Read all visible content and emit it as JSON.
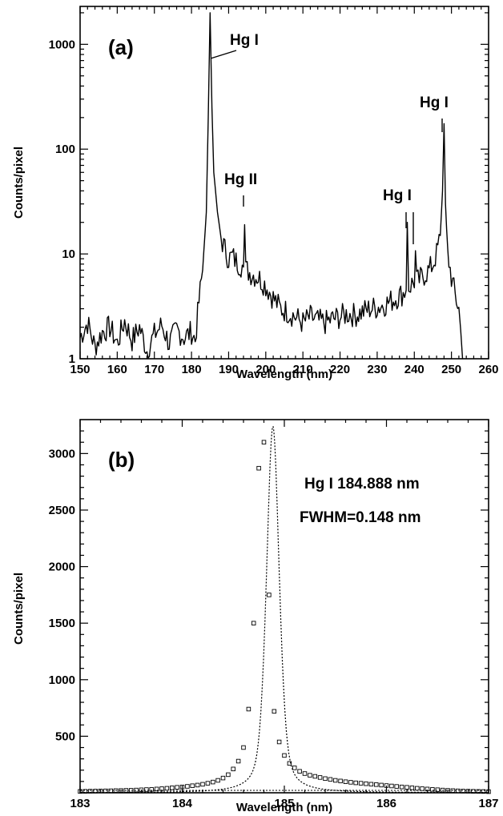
{
  "chart_data": [
    {
      "panel": "(a)",
      "type": "line",
      "xlabel": "Wavelength (nm)",
      "ylabel": "Counts/pixel",
      "xlim": [
        150,
        260
      ],
      "ylim": [
        1,
        2300
      ],
      "yscale": "log",
      "xticks": [
        "150",
        "160",
        "170",
        "180",
        "190",
        "200",
        "210",
        "220",
        "230",
        "240",
        "250",
        "260"
      ],
      "yticks": [
        "1",
        "10",
        "100",
        "1000"
      ],
      "series": [
        {
          "x": [
            150,
            152,
            154,
            156,
            158,
            160,
            162,
            164,
            166,
            168,
            170,
            172,
            174,
            176,
            178,
            180,
            181,
            182,
            183,
            184,
            184.5,
            185,
            185.5,
            186,
            187,
            188,
            189,
            190,
            191,
            192,
            193,
            194,
            194.3,
            194.6,
            195,
            196,
            198,
            200,
            202,
            204,
            206,
            208,
            210,
            212,
            214,
            216,
            218,
            220,
            222,
            224,
            226,
            228,
            230,
            232,
            234,
            236,
            237,
            237.8,
            238.1,
            238.5,
            239,
            240,
            240.3,
            240.6,
            241,
            242,
            243,
            244,
            245,
            246,
            247,
            247.6,
            248,
            248.4,
            249,
            250,
            251,
            252,
            252.5,
            253
          ],
          "y": [
            1.6,
            2.2,
            1.3,
            1.8,
            2.0,
            1.4,
            2.3,
            1.5,
            2.0,
            1.2,
            1.7,
            2.1,
            1.4,
            1.9,
            1.6,
            1.8,
            1.5,
            3.5,
            7,
            25,
            200,
            2000,
            250,
            60,
            25,
            14,
            11,
            9,
            9.5,
            8.5,
            8,
            7.5,
            19,
            7,
            7,
            6.5,
            6,
            5,
            3.8,
            3,
            2.8,
            2.5,
            2.2,
            2.5,
            2.3,
            2.2,
            2.4,
            2.5,
            2.7,
            2.6,
            2.8,
            3.0,
            3.1,
            3.3,
            3.6,
            4.0,
            4.2,
            4.5,
            20,
            4.8,
            5,
            5.5,
            10,
            5.5,
            5.5,
            6,
            6.5,
            7,
            8,
            10,
            15,
            40,
            175,
            30,
            10,
            6,
            4,
            3,
            1.8,
            1
          ]
        }
      ],
      "annotations": [
        "Hg I",
        "Hg II",
        "Hg I",
        "Hg I"
      ]
    },
    {
      "panel": "(b)",
      "type": "line",
      "xlabel": "Wavelength (nm)",
      "ylabel": "Counts/pixel",
      "xlim": [
        183,
        187
      ],
      "ylim": [
        0,
        3300
      ],
      "xticks": [
        "183",
        "184",
        "185",
        "186",
        "187"
      ],
      "yticks": [
        "500",
        "1000",
        "1500",
        "2000",
        "2500",
        "3000"
      ],
      "series": [
        {
          "x": [
            183.0,
            183.05,
            183.1,
            183.15,
            183.2,
            183.25,
            183.3,
            183.35,
            183.4,
            183.45,
            183.5,
            183.55,
            183.6,
            183.65,
            183.7,
            183.75,
            183.8,
            183.85,
            183.9,
            183.95,
            184.0,
            184.05,
            184.1,
            184.15,
            184.2,
            184.25,
            184.3,
            184.35,
            184.4,
            184.45,
            184.5,
            184.55,
            184.6,
            184.65,
            184.7,
            184.75,
            184.8,
            184.85,
            184.9,
            184.95,
            185.0,
            185.05,
            185.1,
            185.15,
            185.2,
            185.25,
            185.3,
            185.35,
            185.4,
            185.45,
            185.5,
            185.55,
            185.6,
            185.65,
            185.7,
            185.75,
            185.8,
            185.85,
            185.9,
            185.95,
            186.0,
            186.05,
            186.1,
            186.15,
            186.2,
            186.25,
            186.3,
            186.35,
            186.4,
            186.45,
            186.5,
            186.55,
            186.6,
            186.65,
            186.7,
            186.75,
            186.8,
            186.85,
            186.9,
            186.95,
            187.0
          ],
          "y": [
            12,
            13,
            14,
            15,
            16,
            17,
            18,
            19,
            20,
            21,
            22,
            24,
            26,
            28,
            30,
            33,
            36,
            40,
            44,
            48,
            52,
            57,
            62,
            68,
            75,
            84,
            95,
            110,
            130,
            160,
            210,
            280,
            400,
            740,
            1500,
            2870,
            3100,
            1750,
            720,
            450,
            330,
            260,
            220,
            190,
            170,
            155,
            145,
            135,
            125,
            118,
            110,
            104,
            98,
            93,
            88,
            84,
            80,
            76,
            72,
            68,
            64,
            60,
            56,
            52,
            48,
            44,
            40,
            36,
            33,
            30,
            27,
            24,
            21,
            19,
            17,
            15,
            14,
            13,
            12,
            11,
            10
          ],
          "style": "markers"
        },
        {
          "name": "fit",
          "style": "dotted",
          "center": 184.888,
          "peak": 3240,
          "fwhm": 0.148
        }
      ],
      "annotations": [
        "Hg I 184.888 nm",
        "FWHM=0.148 nm"
      ]
    }
  ],
  "panels": {
    "a": {
      "tag": "(a)",
      "xlabel": "Wavelength (nm)",
      "ylabel": "Counts/pixel",
      "xticks": [
        "150",
        "160",
        "170",
        "180",
        "190",
        "200",
        "210",
        "220",
        "230",
        "240",
        "250",
        "260"
      ],
      "yticks": [
        "1",
        "10",
        "100",
        "1000"
      ],
      "labels": [
        "Hg I",
        "Hg II",
        "Hg I",
        "Hg I"
      ]
    },
    "b": {
      "tag": "(b)",
      "xlabel": "Wavelength (nm)",
      "ylabel": "Counts/pixel",
      "xticks": [
        "183",
        "184",
        "185",
        "186",
        "187"
      ],
      "yticks": [
        "500",
        "1000",
        "1500",
        "2000",
        "2500",
        "3000"
      ],
      "line_label": "Hg I 184.888 nm",
      "fwhm_label": "FWHM=0.148 nm"
    }
  },
  "colors": {
    "line": "#000000",
    "background": "#ffffff"
  }
}
